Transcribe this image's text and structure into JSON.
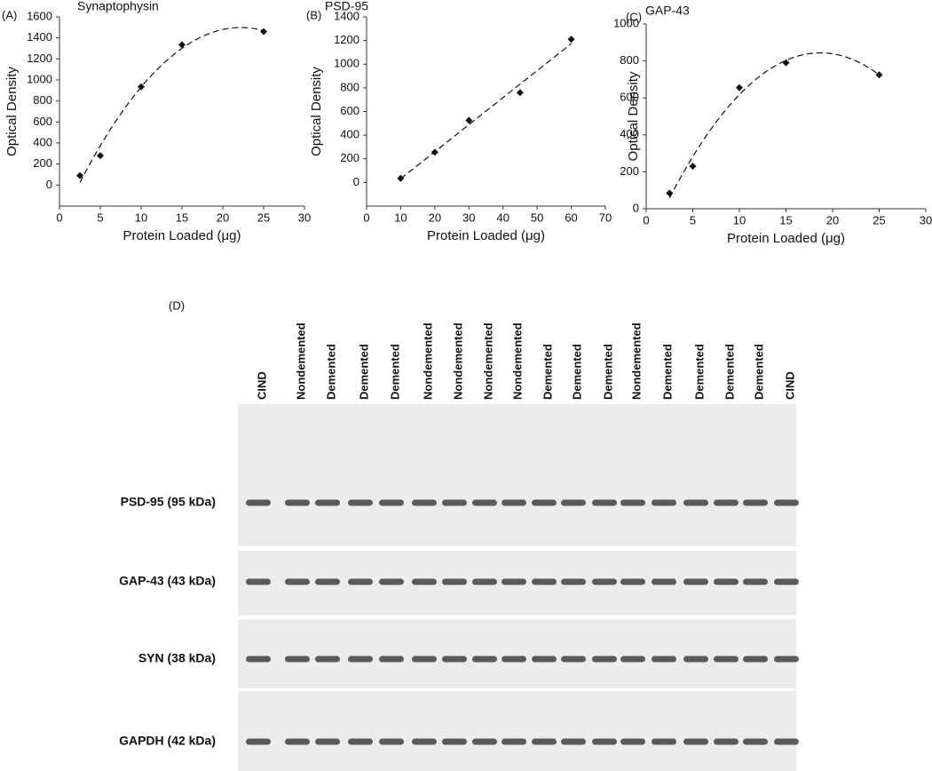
{
  "chart_data": [
    {
      "type": "scatter",
      "panel_label": "(A)",
      "title": "Synaptophysin",
      "xlabel": "Protein Loaded (μg)",
      "ylabel": "Optical Density",
      "x": [
        2.5,
        5,
        10,
        15,
        25
      ],
      "series": [
        {
          "name": "Synaptophysin",
          "color": "#111111",
          "values": [
            90,
            280,
            935,
            1335,
            1460
          ]
        }
      ],
      "trendline": {
        "kind": "polynomial",
        "order": 2,
        "color": "#111111"
      },
      "xlim": [
        0,
        30
      ],
      "xticks": [
        0,
        5,
        10,
        15,
        20,
        25,
        30
      ],
      "ylim": [
        -200,
        1600
      ],
      "yticks": [
        0,
        200,
        400,
        600,
        800,
        1000,
        1200,
        1400,
        1600
      ]
    },
    {
      "type": "scatter",
      "panel_label": "(B)",
      "title": "PSD-95",
      "xlabel": "Protein Loaded (μg)",
      "ylabel": "Optical Density",
      "x": [
        10,
        20,
        30,
        45,
        60
      ],
      "series": [
        {
          "name": "PSD-95",
          "color": "#111111",
          "values": [
            35,
            255,
            525,
            760,
            1210
          ]
        }
      ],
      "trendline": {
        "kind": "polynomial",
        "order": 1,
        "color": "#111111"
      },
      "xlim": [
        0,
        70
      ],
      "xticks": [
        0,
        10,
        20,
        30,
        40,
        50,
        60,
        70
      ],
      "ylim": [
        -200,
        1400
      ],
      "yticks": [
        0,
        200,
        400,
        600,
        800,
        1000,
        1200,
        1400
      ]
    },
    {
      "type": "scatter",
      "panel_label": "(C)",
      "title": "GAP-43",
      "xlabel": "Protein Loaded (μg)",
      "ylabel": "Optical Density",
      "x": [
        2.5,
        5,
        10,
        15,
        25
      ],
      "series": [
        {
          "name": "GAP-43",
          "color": "#111111",
          "values": [
            85,
            230,
            655,
            790,
            725
          ]
        }
      ],
      "trendline": {
        "kind": "polynomial",
        "order": 2,
        "color": "#111111"
      },
      "xlim": [
        0,
        30
      ],
      "xticks": [
        0,
        5,
        10,
        15,
        20,
        25,
        30
      ],
      "ylim": [
        0,
        1000
      ],
      "yticks": [
        0,
        200,
        400,
        600,
        800,
        1000
      ]
    }
  ],
  "blot": {
    "panel_label": "(D)",
    "lanes": [
      "CIND",
      "Nondemented",
      "Demented",
      "Demented",
      "Demented",
      "Nondemented",
      "Nondemented",
      "Nondemented",
      "Nondemented",
      "Demented",
      "Demented",
      "Demented",
      "Nondemented",
      "Demented",
      "Demented",
      "Demented",
      "Demented",
      "CIND"
    ],
    "rows": [
      "PSD-95 (95 kDa)",
      "GAP-43 (43 kDa)",
      "SYN (38 kDa)",
      "GAPDH (42 kDa)"
    ]
  }
}
